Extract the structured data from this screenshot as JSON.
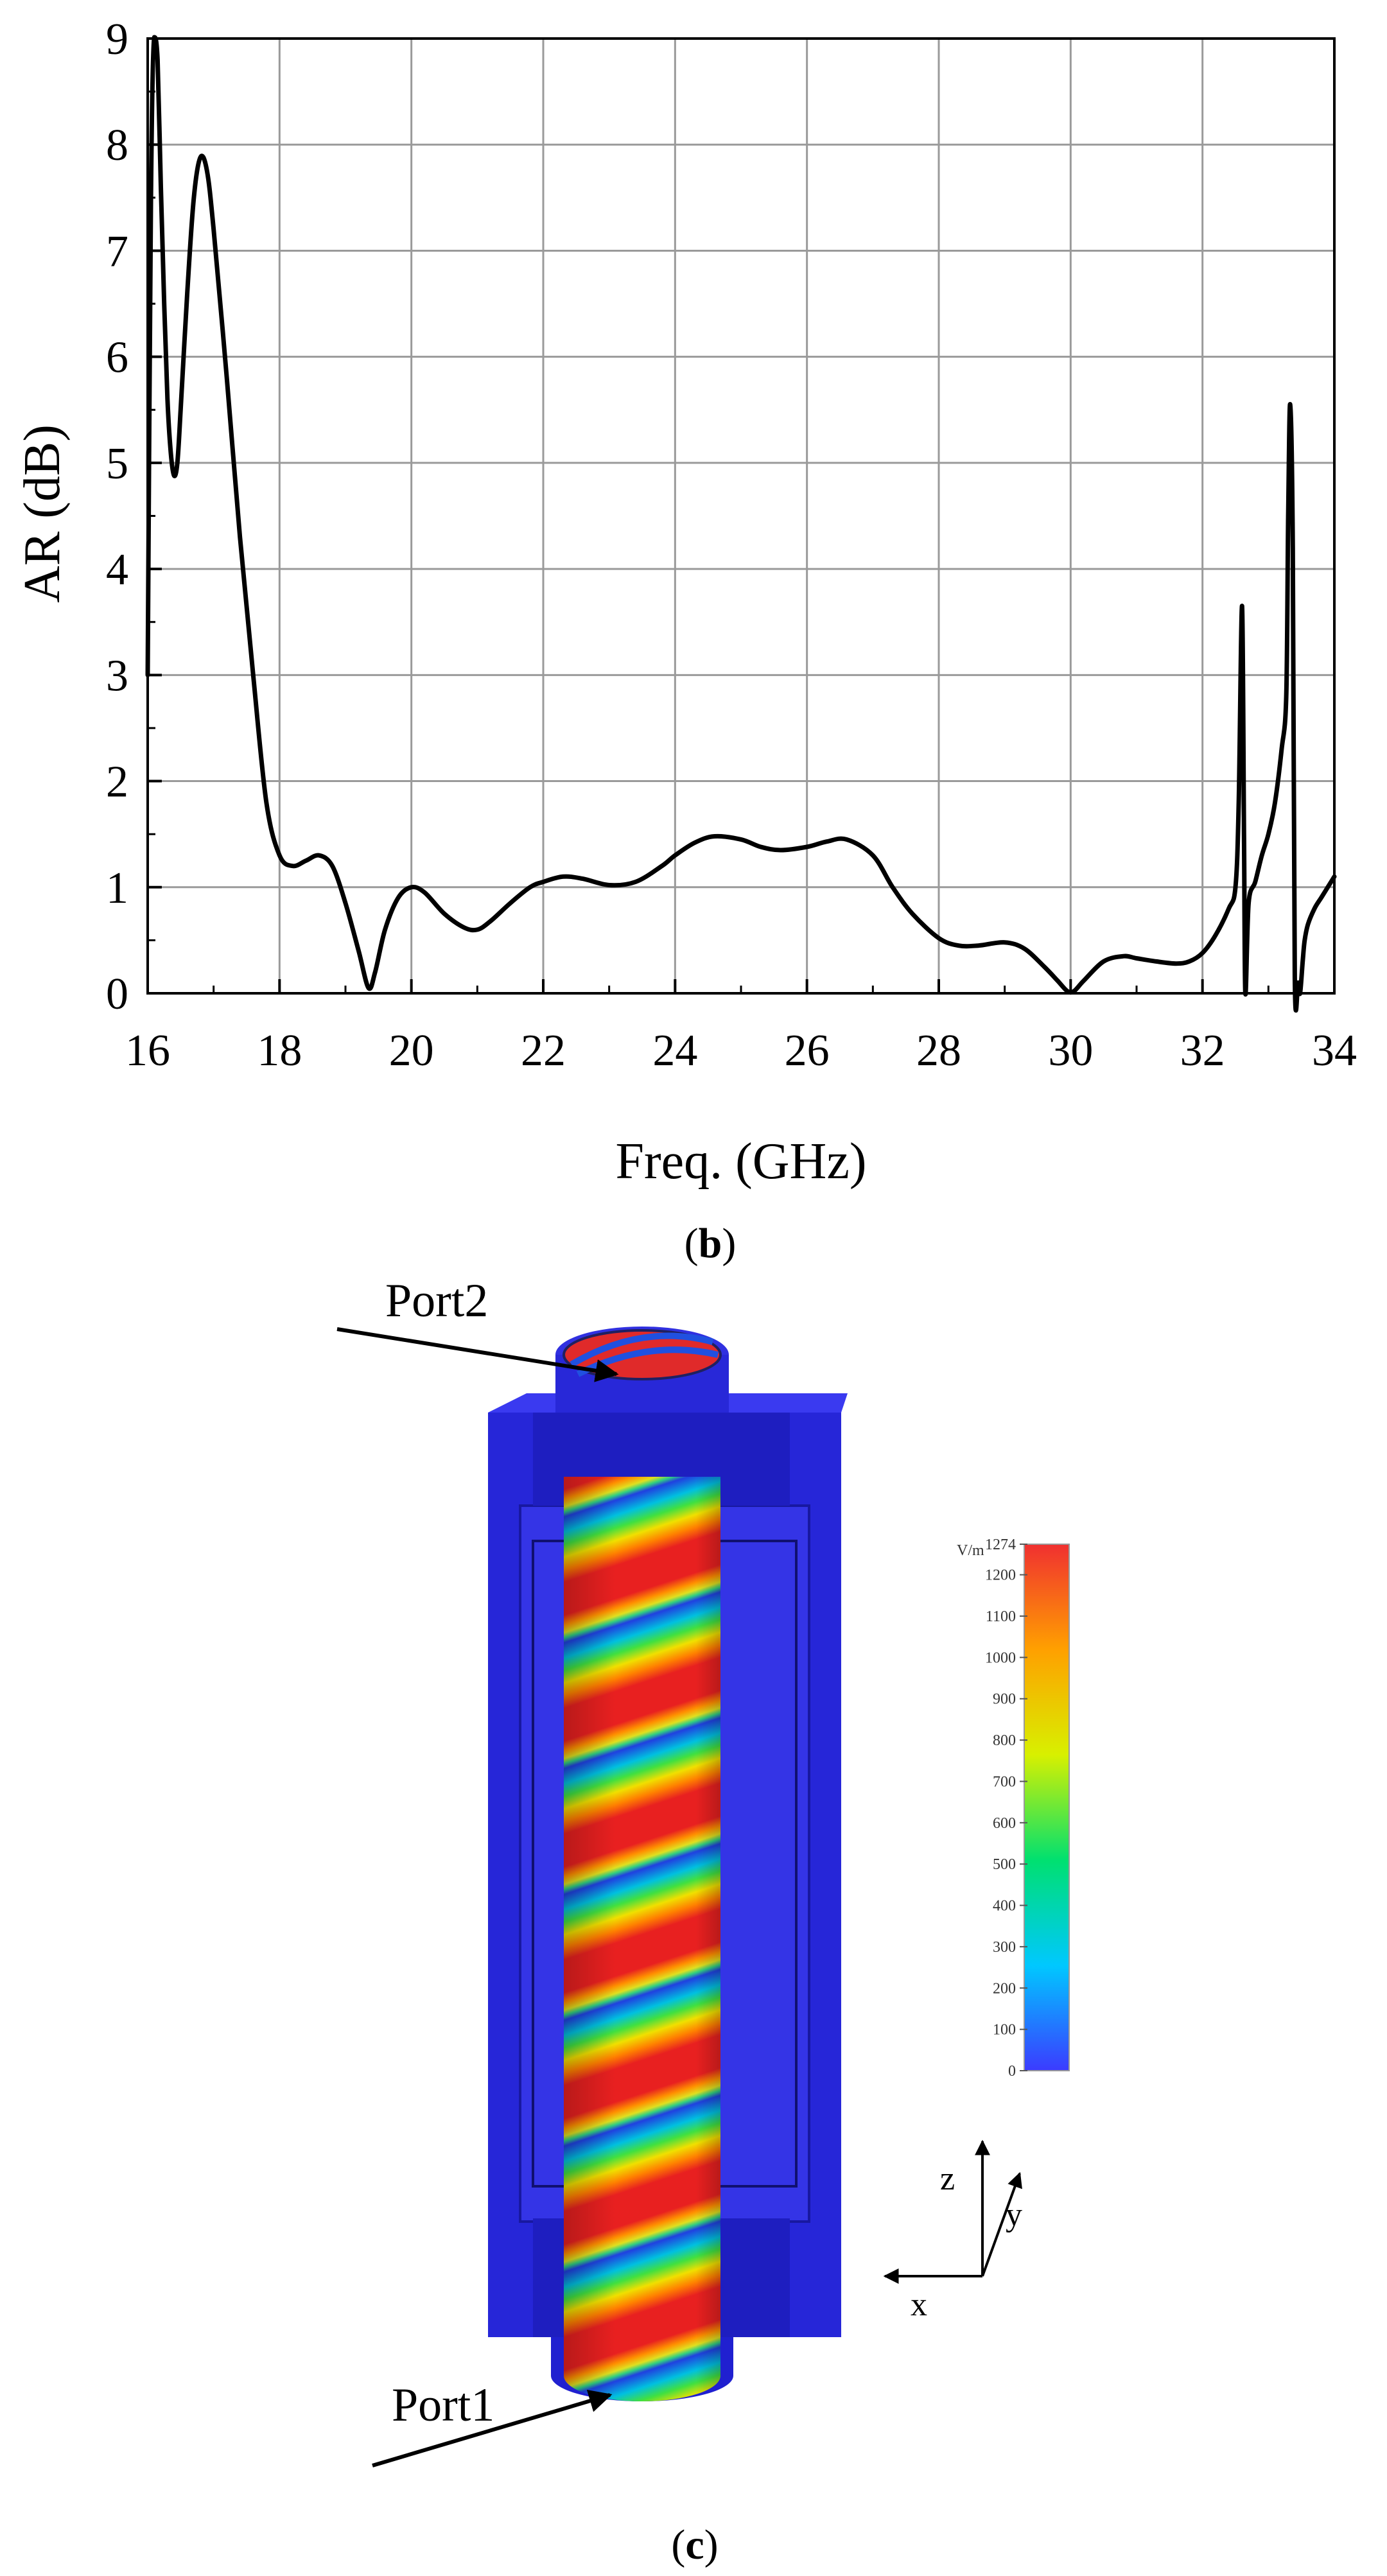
{
  "chart_data": {
    "type": "line",
    "xlabel": "Freq. (GHz)",
    "ylabel": "AR (dB)",
    "xlim": [
      16,
      34
    ],
    "ylim": [
      0,
      9
    ],
    "xticks": [
      16,
      18,
      20,
      22,
      24,
      26,
      28,
      30,
      32,
      34
    ],
    "yticks": [
      0,
      1,
      2,
      3,
      4,
      5,
      6,
      7,
      8,
      9
    ],
    "grid": true,
    "series": [
      {
        "name": "AR",
        "color": "#000000",
        "x": [
          16.0,
          16.05,
          16.1,
          16.15,
          16.2,
          16.25,
          16.3,
          16.35,
          16.4,
          16.45,
          16.5,
          16.6,
          16.7,
          16.8,
          16.9,
          17.0,
          17.2,
          17.4,
          17.6,
          17.8,
          18.0,
          18.2,
          18.4,
          18.6,
          18.8,
          19.0,
          19.2,
          19.35,
          19.45,
          19.6,
          19.8,
          20.0,
          20.2,
          20.5,
          20.8,
          21.0,
          21.2,
          21.5,
          21.8,
          22.0,
          22.3,
          22.6,
          23.0,
          23.4,
          23.8,
          24.0,
          24.3,
          24.6,
          25.0,
          25.3,
          25.6,
          26.0,
          26.3,
          26.6,
          27.0,
          27.3,
          27.6,
          28.0,
          28.3,
          28.6,
          29.0,
          29.3,
          29.6,
          29.8,
          29.95,
          30.05,
          30.2,
          30.5,
          30.8,
          31.0,
          31.3,
          31.6,
          31.8,
          32.0,
          32.2,
          32.4,
          32.5,
          32.55,
          32.6,
          32.63,
          32.65,
          32.7,
          32.8,
          32.9,
          33.0,
          33.1,
          33.2,
          33.27,
          33.3,
          33.33,
          33.37,
          33.4,
          33.45,
          33.48,
          33.52,
          33.55,
          33.6,
          33.7,
          33.8,
          33.9,
          34.0
        ],
        "values": [
          3.0,
          7.5,
          9.2,
          8.8,
          7.6,
          6.5,
          5.6,
          5.1,
          4.88,
          5.0,
          5.5,
          6.6,
          7.5,
          7.88,
          7.75,
          7.2,
          5.8,
          4.3,
          3.0,
          1.8,
          1.3,
          1.2,
          1.25,
          1.3,
          1.2,
          0.85,
          0.4,
          0.05,
          0.2,
          0.6,
          0.9,
          1.0,
          0.95,
          0.75,
          0.62,
          0.6,
          0.68,
          0.85,
          1.0,
          1.05,
          1.1,
          1.08,
          1.02,
          1.05,
          1.2,
          1.3,
          1.42,
          1.48,
          1.45,
          1.38,
          1.35,
          1.38,
          1.43,
          1.45,
          1.3,
          1.0,
          0.75,
          0.52,
          0.45,
          0.45,
          0.48,
          0.42,
          0.25,
          0.12,
          0.02,
          0.02,
          0.12,
          0.3,
          0.35,
          0.33,
          0.3,
          0.28,
          0.3,
          0.38,
          0.55,
          0.8,
          1.0,
          1.8,
          3.65,
          1.5,
          0.0,
          0.85,
          1.05,
          1.3,
          1.5,
          1.8,
          2.3,
          2.8,
          4.5,
          5.55,
          4.2,
          0.15,
          0.1,
          0.0,
          0.3,
          0.5,
          0.65,
          0.8,
          0.9,
          1.0,
          1.1
        ]
      }
    ],
    "panel_label": "b"
  },
  "field_plot": {
    "panel_label": "c",
    "port_top": "Port2",
    "port_bottom": "Port1",
    "colorbar": {
      "unit": "V/m",
      "ticks": [
        "1274",
        "1200",
        "1100",
        "1000",
        "900",
        "800",
        "700",
        "600",
        "500",
        "400",
        "300",
        "200",
        "100",
        "0"
      ]
    },
    "axes": {
      "z": "z",
      "y": "y",
      "x": "x"
    }
  }
}
